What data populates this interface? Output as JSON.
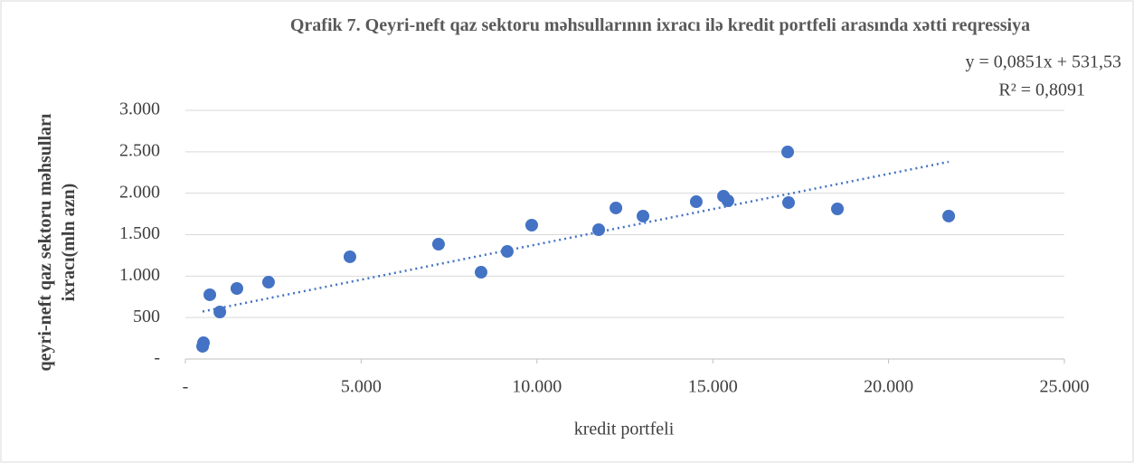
{
  "chart_data": {
    "type": "scatter",
    "title": "Qrafik  7. Qeyri-neft qaz sektoru məhsullarının ixracı ilə kredit portfeli arasında xətti reqressiya",
    "xlabel": "kredit portfeli",
    "ylabel": "qeyri-neft qaz sektoru məhsulları ixracı(mln azn)",
    "x": [
      490,
      515,
      695,
      980,
      1465,
      2365,
      4680,
      7200,
      8410,
      9155,
      9850,
      11755,
      12245,
      13015,
      14530,
      15305,
      15430,
      17155,
      17130,
      18545,
      21710
    ],
    "values": [
      153,
      196,
      775,
      567,
      851,
      927,
      1233,
      1385,
      1047,
      1298,
      1615,
      1560,
      1822,
      1724,
      1898,
      1964,
      1909,
      1887,
      2498,
      1811,
      1724
    ],
    "color": "#4472c4",
    "trendline": {
      "x": [
        490,
        21710
      ],
      "values": [
        573,
        2379
      ],
      "equation": "y = 0,0851x + 531,53",
      "r2": "R² = 0,8091"
    },
    "xlim": [
      0,
      25000
    ],
    "xticks": [
      {
        "value": 0,
        "label": "-"
      },
      {
        "value": 5000,
        "label": "5.000"
      },
      {
        "value": 10000,
        "label": "10.000"
      },
      {
        "value": 15000,
        "label": "15.000"
      },
      {
        "value": 20000,
        "label": "20.000"
      },
      {
        "value": 25000,
        "label": "25.000"
      }
    ],
    "ylim": [
      0,
      3000
    ],
    "yticks": [
      {
        "value": 0,
        "label": "-"
      },
      500,
      {
        "value": 1000,
        "label": "1.000"
      },
      {
        "value": 1500,
        "label": "1.500"
      },
      {
        "value": 2000,
        "label": "2.000"
      },
      {
        "value": 2500,
        "label": "2.500"
      },
      {
        "value": 3000,
        "label": "3.000"
      }
    ],
    "grid": true
  }
}
